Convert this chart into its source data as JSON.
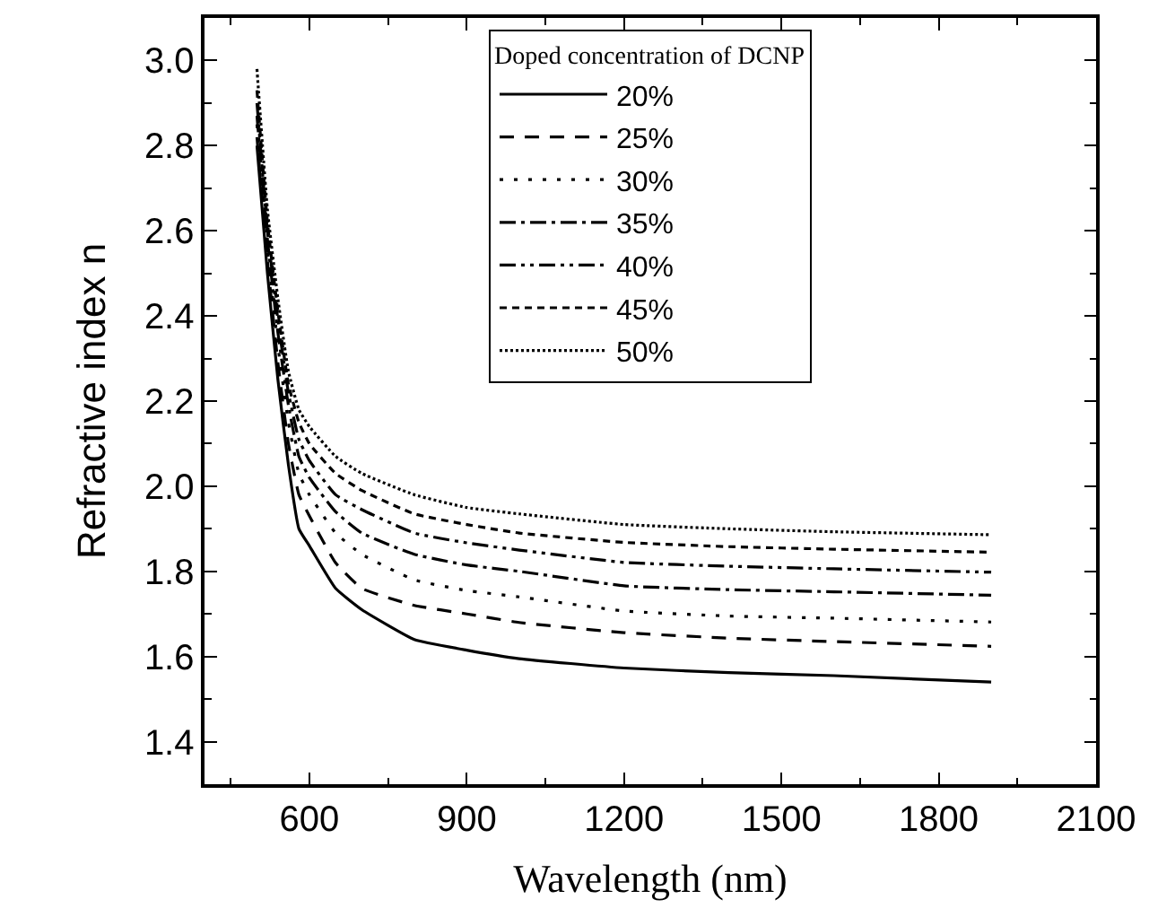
{
  "chart_data": {
    "type": "line",
    "xlabel": "Wavelength (nm)",
    "ylabel": "Refractive index n",
    "legend_title": "Doped concentration of DCNP",
    "x": [
      500,
      520,
      540,
      560,
      580,
      600,
      650,
      700,
      800,
      900,
      1000,
      1200,
      1400,
      1600,
      1900
    ],
    "series": [
      {
        "name": "20%",
        "color": "#000000",
        "line_style": "solid",
        "values": [
          2.8,
          2.5,
          2.25,
          2.05,
          1.9,
          1.86,
          1.76,
          1.71,
          1.64,
          1.615,
          1.595,
          1.573,
          1.562,
          1.555,
          1.54
        ]
      },
      {
        "name": "25%",
        "color": "#000000",
        "line_style": "dashed",
        "values": [
          2.82,
          2.53,
          2.29,
          2.1,
          1.98,
          1.93,
          1.82,
          1.76,
          1.72,
          1.7,
          1.68,
          1.656,
          1.643,
          1.635,
          1.624
        ]
      },
      {
        "name": "30%",
        "color": "#000000",
        "line_style": "dotted",
        "values": [
          2.85,
          2.56,
          2.33,
          2.15,
          2.03,
          1.98,
          1.89,
          1.84,
          1.78,
          1.755,
          1.74,
          1.707,
          1.695,
          1.69,
          1.681
        ]
      },
      {
        "name": "35%",
        "color": "#000000",
        "line_style": "dashdot",
        "values": [
          2.87,
          2.58,
          2.36,
          2.19,
          2.07,
          2.02,
          1.94,
          1.89,
          1.84,
          1.815,
          1.8,
          1.766,
          1.757,
          1.752,
          1.744
        ]
      },
      {
        "name": "40%",
        "color": "#000000",
        "line_style": "dashdotdot",
        "values": [
          2.9,
          2.6,
          2.39,
          2.22,
          2.11,
          2.06,
          1.98,
          1.945,
          1.89,
          1.867,
          1.85,
          1.821,
          1.812,
          1.806,
          1.798
        ]
      },
      {
        "name": "45%",
        "color": "#000000",
        "line_style": "shortdash",
        "values": [
          2.93,
          2.62,
          2.41,
          2.24,
          2.15,
          2.1,
          2.03,
          1.99,
          1.935,
          1.91,
          1.89,
          1.868,
          1.858,
          1.852,
          1.845
        ]
      },
      {
        "name": "50%",
        "color": "#000000",
        "line_style": "densedot",
        "values": [
          2.98,
          2.65,
          2.44,
          2.27,
          2.18,
          2.14,
          2.07,
          2.03,
          1.98,
          1.95,
          1.935,
          1.91,
          1.9,
          1.893,
          1.886
        ]
      }
    ],
    "xlim": [
      400,
      2100
    ],
    "xticks": [
      600,
      900,
      1200,
      1500,
      1800,
      2100
    ],
    "ylim": [
      1.3,
      3.1
    ],
    "yticks": [
      1.4,
      1.6,
      1.8,
      {
        "value": 2,
        "label": "2.0"
      },
      2.2,
      2.4,
      2.6,
      2.8,
      {
        "value": 3,
        "label": "3.0"
      }
    ],
    "legend": "top"
  }
}
